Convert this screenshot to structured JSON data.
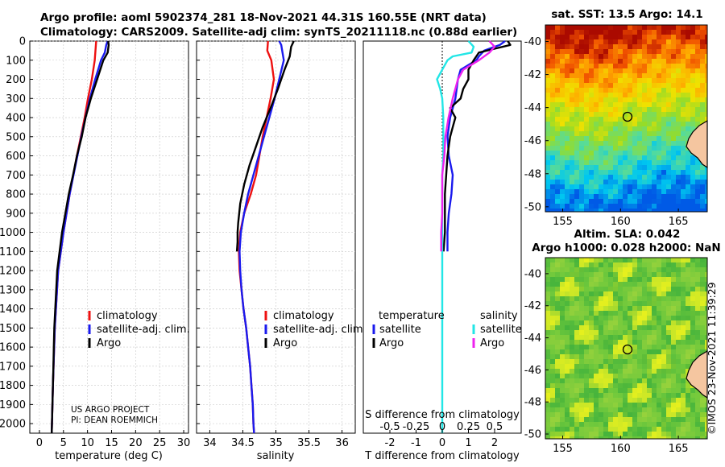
{
  "header": {
    "line1": "Argo profile: aoml 5902374_281 18-Nov-2021 44.31S 160.55E (NRT data)",
    "line2": "Climatology: CARS2009. Satellite-adj clim: synTS_20211118.nc (0.88d earlier)"
  },
  "credits": {
    "line1": "US ARGO PROJECT",
    "line2": "PI: DEAN ROEMMICH"
  },
  "timestamp": "©IMOS 23-Nov-2021 11:39:29",
  "colors": {
    "climatology": "#ee1111",
    "satellite": "#1a1aee",
    "argo": "#000000",
    "sat_s": "#22e6e6",
    "argo_s": "#ee22ee"
  },
  "chart_data": [
    {
      "type": "line",
      "id": "temperature",
      "xlabel": "temperature (deg C)",
      "ylabel": "",
      "xlim": [
        -2,
        31
      ],
      "ylim": [
        2050,
        0
      ],
      "xticks": [
        "0",
        "5",
        "10",
        "15",
        "20",
        "25",
        "30"
      ],
      "yticks": [
        "0",
        "100",
        "200",
        "300",
        "400",
        "500",
        "600",
        "700",
        "800",
        "900",
        "1000",
        "1100",
        "1200",
        "1300",
        "1400",
        "1500",
        "1600",
        "1700",
        "1800",
        "1900",
        "2000"
      ],
      "legend": [
        "climatology",
        "satellite-adj. clim.",
        "Argo"
      ],
      "series": [
        {
          "name": "climatology",
          "color": "#ee1111",
          "depth": [
            0,
            100,
            200,
            300,
            400,
            500,
            600,
            800,
            1000,
            1200,
            1500,
            1800,
            2000,
            2050
          ],
          "values": [
            11.8,
            11.5,
            10.9,
            10.1,
            9.4,
            8.6,
            7.8,
            6.3,
            5.0,
            3.9,
            3.2,
            2.8,
            2.6,
            2.55
          ]
        },
        {
          "name": "satellite-adj. clim.",
          "color": "#1a1aee",
          "depth": [
            0,
            20,
            60,
            100,
            200,
            300,
            400,
            500,
            600,
            800,
            1000,
            1200,
            1500,
            1800,
            2000,
            2050
          ],
          "values": [
            14.2,
            13.9,
            13.6,
            12.8,
            11.6,
            10.5,
            9.6,
            8.7,
            7.9,
            6.3,
            5.0,
            3.9,
            3.2,
            2.8,
            2.6,
            2.55
          ]
        },
        {
          "name": "Argo",
          "color": "#000000",
          "depth": [
            0,
            20,
            60,
            100,
            200,
            300,
            400,
            500,
            600,
            700,
            800,
            900,
            1000,
            1100,
            1200,
            1300,
            1400,
            1500,
            1600,
            1700,
            1800,
            1900,
            2000,
            2050
          ],
          "values": [
            14.3,
            14.4,
            14.2,
            13.3,
            12.0,
            10.7,
            9.6,
            8.8,
            7.8,
            7.0,
            6.1,
            5.4,
            4.7,
            4.2,
            3.7,
            3.5,
            3.3,
            3.1,
            3.0,
            2.9,
            2.8,
            2.7,
            2.6,
            2.55
          ]
        }
      ]
    },
    {
      "type": "line",
      "id": "salinity",
      "xlabel": "salinity",
      "ylabel": "",
      "xlim": [
        33.8,
        36.2
      ],
      "ylim": [
        2050,
        0
      ],
      "xticks": [
        "34",
        "34.5",
        "35",
        "35.5",
        "36"
      ],
      "legend": [
        "climatology",
        "satellite-adj. clim.",
        "Argo"
      ],
      "series": [
        {
          "name": "climatology",
          "color": "#ee1111",
          "depth": [
            0,
            50,
            100,
            200,
            300,
            400,
            500,
            600,
            700,
            800,
            900,
            1000,
            1100,
            1200,
            1300,
            1400,
            1500,
            1600,
            1700,
            1800,
            1900,
            2000,
            2050
          ],
          "values": [
            34.88,
            34.87,
            34.93,
            34.97,
            34.92,
            34.86,
            34.8,
            34.75,
            34.7,
            34.62,
            34.52,
            34.46,
            34.44,
            34.45,
            34.48,
            34.51,
            34.55,
            34.58,
            34.61,
            34.63,
            34.65,
            34.66,
            34.67
          ]
        },
        {
          "name": "satellite-adj. clim.",
          "color": "#1a1aee",
          "depth": [
            0,
            20,
            60,
            100,
            200,
            300,
            400,
            500,
            600,
            700,
            800,
            900,
            1000,
            1100,
            1200,
            1300,
            1400,
            1500,
            1600,
            1700,
            1800,
            1900,
            2000,
            2050
          ],
          "values": [
            35.05,
            35.08,
            35.1,
            35.12,
            35.05,
            34.98,
            34.9,
            34.82,
            34.74,
            34.66,
            34.58,
            34.52,
            34.47,
            34.45,
            34.46,
            34.48,
            34.51,
            34.55,
            34.58,
            34.61,
            34.63,
            34.65,
            34.66,
            34.67
          ]
        },
        {
          "name": "Argo",
          "color": "#000000",
          "depth": [
            0,
            30,
            80,
            150,
            250,
            350,
            450,
            550,
            650,
            750,
            850,
            950,
            1000,
            1050,
            1100
          ],
          "values": [
            35.27,
            35.23,
            35.21,
            35.13,
            35.03,
            34.92,
            34.8,
            34.7,
            34.6,
            34.52,
            34.46,
            34.43,
            34.42,
            34.42,
            34.41
          ]
        }
      ]
    },
    {
      "type": "line",
      "id": "differences",
      "xlabel": "T difference from climatology",
      "x2label": "S difference from climatology",
      "xlim": [
        -3,
        3
      ],
      "ylim": [
        2050,
        0
      ],
      "xticks": [
        "-2",
        "-1",
        "0",
        "1",
        "2"
      ],
      "x2ticks": [
        "-0.5",
        "-0.25",
        "0",
        "0.25",
        "0.5"
      ],
      "legend": {
        "temperature_title": "temperature",
        "salinity_title": "salinity",
        "t_satellite": "satellite",
        "t_argo": "Argo",
        "s_satellite": "satellite",
        "s_argo": "Argo"
      },
      "series": [
        {
          "name": "satellite (temperature)",
          "color": "#1a1aee",
          "depth": [
            0,
            20,
            50,
            80,
            100,
            150,
            200,
            300,
            400,
            500,
            600,
            700,
            800,
            900,
            1000,
            1100
          ],
          "values": [
            2.4,
            2.2,
            1.6,
            1.4,
            1.3,
            0.7,
            0.6,
            0.5,
            0.3,
            0.2,
            0.25,
            0.4,
            0.35,
            0.25,
            0.2,
            0.2
          ]
        },
        {
          "name": "Argo (temperature)",
          "color": "#000000",
          "depth": [
            0,
            20,
            40,
            60,
            80,
            100,
            150,
            200,
            250,
            300,
            350,
            400,
            450,
            500,
            600,
            700,
            800,
            900,
            1000,
            1100
          ],
          "values": [
            2.5,
            2.6,
            2.0,
            1.4,
            1.3,
            1.2,
            1.0,
            1.0,
            0.8,
            0.7,
            0.3,
            0.5,
            0.4,
            0.3,
            0.2,
            0.15,
            0.1,
            0.1,
            0.1,
            0.05
          ]
        },
        {
          "name": "satellite (salinity)",
          "color": "#22e6e6",
          "depth": [
            0,
            30,
            60,
            80,
            100,
            150,
            200,
            250,
            300,
            400,
            500,
            600,
            700,
            800,
            900,
            1000,
            1100,
            1200,
            1300,
            1400,
            1500,
            1600,
            1700,
            1800,
            1900,
            2000,
            2050
          ],
          "values": [
            0.25,
            0.3,
            0.28,
            0.1,
            0.05,
            0.0,
            -0.05,
            -0.02,
            0.0,
            0.01,
            0.01,
            0.01,
            0.0,
            0.0,
            0.0,
            0.0,
            0.0,
            0.0,
            0.0,
            0.0,
            0.0,
            0.0,
            0.0,
            0.0,
            0.0,
            0.0,
            0.0
          ]
        },
        {
          "name": "Argo (salinity)",
          "color": "#ee22ee",
          "depth": [
            0,
            30,
            60,
            100,
            150,
            200,
            300,
            400,
            500,
            600,
            700,
            800,
            900,
            1000,
            1100
          ],
          "values": [
            0.45,
            0.5,
            0.45,
            0.35,
            0.2,
            0.15,
            0.1,
            0.06,
            0.03,
            0.02,
            0.0,
            0.0,
            0.0,
            -0.01,
            -0.01
          ]
        }
      ]
    },
    {
      "type": "heatmap",
      "id": "sst_map",
      "title": "sat. SST: 13.5 Argo: 14.1",
      "xlim": [
        153.5,
        167.5
      ],
      "ylim": [
        -50.3,
        -39.0
      ],
      "xticks": [
        "155",
        "160",
        "165"
      ],
      "yticks": [
        "-40",
        "-42",
        "-44",
        "-46",
        "-48",
        "-50"
      ],
      "marker": {
        "lon": 160.55,
        "lat": -44.31
      }
    },
    {
      "type": "heatmap",
      "id": "sla_map",
      "title_line1": "Altim. SLA: 0.042",
      "title_line2": "Argo h1000: 0.028 h2000: NaN",
      "xlim": [
        153.5,
        167.5
      ],
      "ylim": [
        -50.3,
        -39.0
      ],
      "xticks": [
        "155",
        "160",
        "165"
      ],
      "yticks": [
        "-40",
        "-42",
        "-44",
        "-46",
        "-48",
        "-50"
      ],
      "marker": {
        "lon": 160.55,
        "lat": -44.31
      }
    }
  ]
}
